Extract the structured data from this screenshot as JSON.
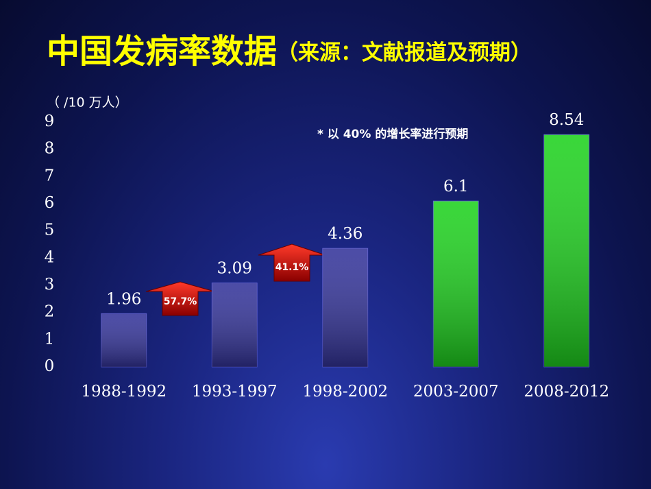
{
  "chart_data": {
    "type": "bar",
    "title": "中国发病率数据",
    "subtitle": "（来源：文献报道及预期）",
    "y_label": "（ /10 万人）",
    "annotation": "* 以 40% 的增长率进行预期",
    "growth_labels": [
      "57.7%",
      "41.1%"
    ],
    "categories": [
      "1988-1992",
      "1993-1997",
      "1998-2002",
      "2003-2007",
      "2008-2012"
    ],
    "values": [
      1.96,
      3.09,
      4.36,
      6.1,
      8.54
    ],
    "colors": [
      "#34349a",
      "#34349a",
      "#34349a",
      "#1fd21f",
      "#1fd21f"
    ],
    "ylim": [
      0,
      9
    ],
    "yticks": [
      0,
      1,
      2,
      3,
      4,
      5,
      6,
      7,
      8,
      9
    ]
  }
}
